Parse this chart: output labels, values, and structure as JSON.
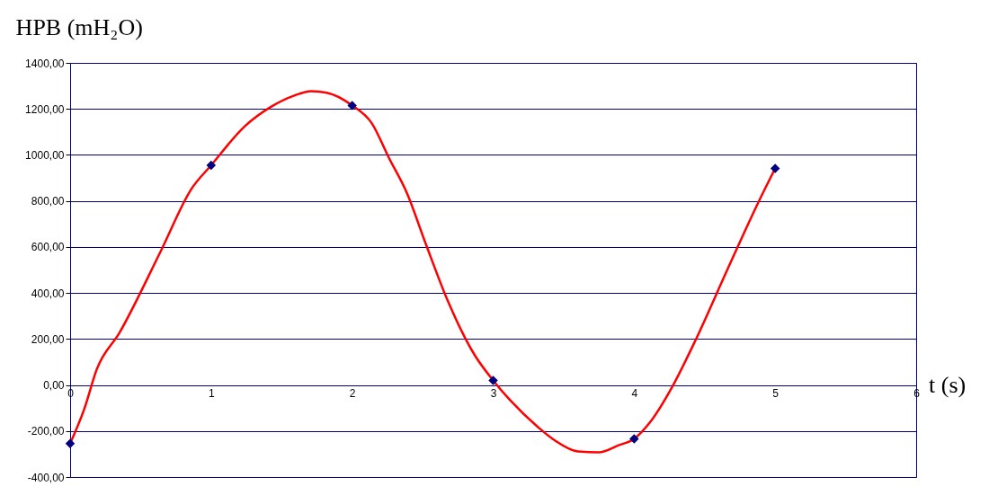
{
  "chart_data": {
    "type": "line",
    "ylabel": "HPB (mH₂O)",
    "xlabel": "t (s)",
    "xlim": [
      0,
      6
    ],
    "xticks": [
      0,
      1,
      2,
      3,
      4,
      5,
      6
    ],
    "ylim": [
      -400,
      1400
    ],
    "yticks": [
      {
        "value": -400,
        "label": "-400,00"
      },
      {
        "value": -200,
        "label": "-200,00"
      },
      {
        "value": 0,
        "label": "0,00"
      },
      {
        "value": 200,
        "label": "200,00"
      },
      {
        "value": 400,
        "label": "400,00"
      },
      {
        "value": 600,
        "label": "600,00"
      },
      {
        "value": 800,
        "label": "800,00"
      },
      {
        "value": 1000,
        "label": "1000,00"
      },
      {
        "value": 1200,
        "label": "1200,00"
      },
      {
        "value": 1400,
        "label": "1400,00"
      }
    ],
    "grid": "y",
    "series": [
      {
        "color": "#ff0000",
        "marker": "none",
        "line_style": "solid",
        "x": [
          0,
          0.1,
          0.19,
          0.35,
          0.64,
          0.86,
          1.0,
          1.24,
          1.43,
          1.59,
          1.71,
          1.82,
          2.0,
          2.14,
          2.26,
          2.39,
          2.52,
          2.68,
          2.87,
          3.0,
          3.12,
          3.32,
          3.44,
          3.6,
          3.75,
          3.89,
          4.0,
          4.11,
          4.27,
          4.43,
          4.66,
          4.88,
          5.0
        ],
        "values": [
          -255,
          -105,
          70,
          227,
          578,
          852,
          955,
          1125,
          1211,
          1258,
          1277,
          1270,
          1215,
          1137,
          988,
          832,
          617,
          363,
          129,
          20,
          -66,
          -184,
          -242,
          -289,
          -293,
          -262,
          -234,
          -164,
          -8,
          188,
          500,
          793,
          941
        ]
      },
      {
        "type": "scatter",
        "color": "#000080",
        "marker": "diamond",
        "x": [
          0,
          1,
          2,
          3,
          4,
          5
        ],
        "values": [
          -255,
          955,
          1215,
          20,
          -234,
          941
        ]
      }
    ]
  }
}
